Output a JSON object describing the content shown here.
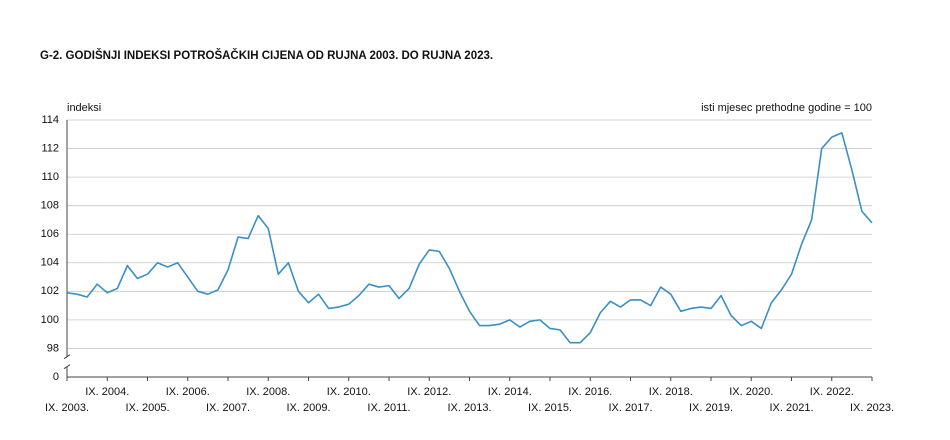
{
  "chart_data": {
    "type": "line",
    "title": "G-2.  GODIŠNJI INDEKSI POTROŠAČKIH CIJENA OD RUJNA 2003. DO RUJNA 2023.",
    "y_axis_label": "indeksi",
    "annotation": "isti mjesec prethodne godine = 100",
    "categories": [
      "IX. 2003.",
      null,
      null,
      null,
      "IX. 2004.",
      null,
      null,
      null,
      "IX. 2005.",
      null,
      null,
      null,
      "IX. 2006.",
      null,
      null,
      null,
      "IX. 2007.",
      null,
      null,
      null,
      "IX. 2008.",
      null,
      null,
      null,
      "IX. 2009.",
      null,
      null,
      null,
      "IX. 2010.",
      null,
      null,
      null,
      "IX. 2011.",
      null,
      null,
      null,
      "IX. 2012.",
      null,
      null,
      null,
      "IX. 2013.",
      null,
      null,
      null,
      "IX. 2014.",
      null,
      null,
      null,
      "IX. 2015.",
      null,
      null,
      null,
      "IX. 2016.",
      null,
      null,
      null,
      "IX. 2017.",
      null,
      null,
      null,
      "IX. 2018.",
      null,
      null,
      null,
      "IX. 2019.",
      null,
      null,
      null,
      "IX. 2020.",
      null,
      null,
      null,
      "IX. 2021.",
      null,
      null,
      null,
      "IX. 2022.",
      null,
      null,
      null,
      "IX. 2023."
    ],
    "series": [
      {
        "name": "indeksi",
        "color": "#3a8fc4",
        "values": [
          101.9,
          101.8,
          101.6,
          102.5,
          101.9,
          102.2,
          103.8,
          102.9,
          103.2,
          104.0,
          103.7,
          104.0,
          103.0,
          102.0,
          101.8,
          102.1,
          103.5,
          105.8,
          105.7,
          107.3,
          106.4,
          103.2,
          104.0,
          102.0,
          101.2,
          101.8,
          100.8,
          100.9,
          101.1,
          101.7,
          102.5,
          102.3,
          102.4,
          101.5,
          102.2,
          103.9,
          104.9,
          104.8,
          103.6,
          102.0,
          100.6,
          99.6,
          99.6,
          99.7,
          100.0,
          99.5,
          99.9,
          100.0,
          99.4,
          99.3,
          98.4,
          98.4,
          99.1,
          100.5,
          101.3,
          100.9,
          101.4,
          101.4,
          101.0,
          102.3,
          101.8,
          100.6,
          100.8,
          100.9,
          100.8,
          101.7,
          100.3,
          99.6,
          99.9,
          99.4,
          101.2,
          102.1,
          103.2,
          105.3,
          107.0,
          112.0,
          112.8,
          113.1,
          110.5,
          107.6,
          106.8
        ]
      }
    ],
    "ylim": [
      96,
      114
    ],
    "yticks": [
      0,
      98,
      100,
      102,
      104,
      106,
      108,
      110,
      112,
      114
    ],
    "axis_break": true,
    "grid": true
  }
}
